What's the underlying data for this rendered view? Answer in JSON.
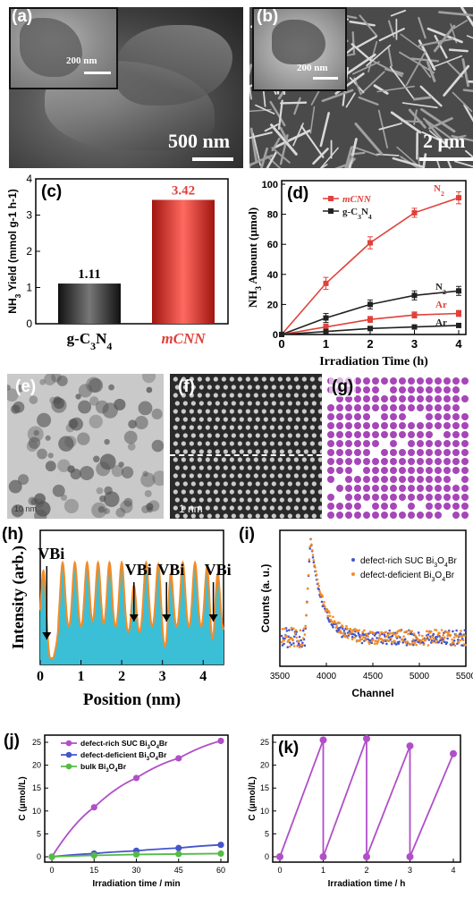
{
  "panels": {
    "a": {
      "label": "(a)",
      "scale_main": "500 nm",
      "scale_inset": "200 nm"
    },
    "b": {
      "label": "(b)",
      "scale_main": "2 μm",
      "scale_inset": "200 nm"
    },
    "c": {
      "label": "(c)"
    },
    "d": {
      "label": "(d)"
    },
    "e": {
      "label": "(e)",
      "scale": "10 nm"
    },
    "f": {
      "label": "(f)",
      "scale": "1 nm"
    },
    "g": {
      "label": "(g)"
    },
    "h": {
      "label": "(h)"
    },
    "i": {
      "label": "(i)"
    },
    "j": {
      "label": "(j)"
    },
    "k": {
      "label": "(k)"
    }
  },
  "colors": {
    "red": "#e0413a",
    "black": "#222222",
    "teal": "#3bbfd6",
    "orange": "#f28c28",
    "purple": "#b04fc8",
    "blue": "#4455cc",
    "green": "#55bb44",
    "atom": "#a646b8"
  },
  "chart_data": [
    {
      "id": "c",
      "type": "bar",
      "categories": [
        "g-C3N4",
        "mCNN"
      ],
      "values": [
        1.11,
        3.42
      ],
      "value_labels": [
        "1.11",
        "3.42"
      ],
      "ylabel": "NH3 Yield (mmol g-1 h-1)",
      "ylim": [
        0,
        4
      ],
      "yticks": [
        "0",
        "1",
        "2",
        "3",
        "4"
      ],
      "colors": [
        "#222222",
        "#e0413a"
      ]
    },
    {
      "id": "d",
      "type": "line",
      "xlabel": "Irradiation Time (h)",
      "ylabel": "NH3 Amount (μmol)",
      "xlim": [
        0,
        4
      ],
      "ylim": [
        0,
        100
      ],
      "xticks": [
        "0",
        "1",
        "2",
        "3",
        "4"
      ],
      "yticks": [
        "0",
        "20",
        "40",
        "60",
        "80",
        "100"
      ],
      "legend": [
        {
          "name": "mCNN",
          "color": "#e0413a"
        },
        {
          "name": "g-C3N4",
          "color": "#222222"
        }
      ],
      "series": [
        {
          "name": "mCNN N2",
          "color": "#e0413a",
          "x": [
            0,
            1,
            2,
            3,
            4
          ],
          "y": [
            0,
            34,
            61,
            81,
            91
          ],
          "err": [
            0,
            4,
            4,
            3,
            4
          ]
        },
        {
          "name": "g-C3N4 N2",
          "color": "#222222",
          "x": [
            0,
            1,
            2,
            3,
            4
          ],
          "y": [
            0,
            11,
            20,
            26,
            29
          ],
          "err": [
            0,
            3,
            3,
            3,
            3
          ]
        },
        {
          "name": "mCNN Ar",
          "color": "#e0413a",
          "x": [
            0,
            1,
            2,
            3,
            4
          ],
          "y": [
            0,
            5,
            10,
            13,
            14
          ],
          "err": [
            0,
            2,
            2,
            2,
            2
          ]
        },
        {
          "name": "g-C3N4 Ar",
          "color": "#222222",
          "x": [
            0,
            1,
            2,
            3,
            4
          ],
          "y": [
            0,
            2,
            4,
            5,
            6
          ],
          "err": [
            0,
            1,
            1,
            1,
            1
          ]
        }
      ],
      "annotations": [
        {
          "text": "N2",
          "color": "#e0413a"
        },
        {
          "text": "N2",
          "color": "#222222"
        },
        {
          "text": "Ar",
          "color": "#e0413a"
        },
        {
          "text": "Ar",
          "color": "#222222"
        }
      ]
    },
    {
      "id": "h",
      "type": "area",
      "xlabel": "Position (nm)",
      "ylabel": "Intensity (arb.)",
      "xlim": [
        0,
        4.5
      ],
      "xticks": [
        "0",
        "1",
        "2",
        "3",
        "4"
      ],
      "peaks_x": [
        0.08,
        0.55,
        0.85,
        1.15,
        1.42,
        1.7,
        2.0,
        2.3,
        2.6,
        2.9,
        3.2,
        3.5,
        3.8,
        4.1,
        4.35
      ],
      "vacancy_labels": [
        "VBi",
        "VBi",
        "VBi",
        "VBi"
      ],
      "vacancy_x": [
        0.27,
        2.3,
        3.1,
        4.25
      ]
    },
    {
      "id": "i",
      "type": "scatter",
      "xlabel": "Channel",
      "ylabel": "Counts (a. u.)",
      "xlim": [
        3500,
        5500
      ],
      "xticks": [
        "3500",
        "4000",
        "4500",
        "5000",
        "5500"
      ],
      "series": [
        {
          "name": "defect-rich SUC Bi3O4Br",
          "color": "#4455cc"
        },
        {
          "name": "defect-deficient Bi3O4Br",
          "color": "#f28c28"
        }
      ],
      "peak_channel": 3830
    },
    {
      "id": "j",
      "type": "line",
      "xlabel": "Irradiation time / min",
      "ylabel": "C (μmol/L)",
      "xlim": [
        0,
        60
      ],
      "ylim": [
        0,
        25
      ],
      "xticks": [
        "0",
        "15",
        "30",
        "45",
        "60"
      ],
      "yticks": [
        "0",
        "5",
        "10",
        "15",
        "20",
        "25"
      ],
      "x": [
        0,
        15,
        30,
        45,
        60
      ],
      "series": [
        {
          "name": "defect-rich SUC Bi3O4Br",
          "color": "#b04fc8",
          "y": [
            0,
            10.8,
            17.2,
            21.5,
            25.3
          ]
        },
        {
          "name": "defect-deficient Bi3O4Br",
          "color": "#4455cc",
          "y": [
            0,
            0.7,
            1.3,
            1.9,
            2.6
          ]
        },
        {
          "name": "bulk Bi3O4Br",
          "color": "#55bb44",
          "y": [
            0,
            0.3,
            0.5,
            0.6,
            0.7
          ]
        }
      ]
    },
    {
      "id": "k",
      "type": "line",
      "xlabel": "Irradiation time / h",
      "ylabel": "C (μmol/L)",
      "xlim": [
        0,
        4
      ],
      "ylim": [
        0,
        25
      ],
      "xticks": [
        "0",
        "1",
        "2",
        "3",
        "4"
      ],
      "yticks": [
        "0",
        "5",
        "10",
        "15",
        "20",
        "25"
      ],
      "x": [
        0,
        1,
        1,
        2,
        2,
        3,
        3,
        4
      ],
      "y": [
        0,
        25.5,
        0,
        25.8,
        0,
        24.2,
        0,
        22.5
      ],
      "color": "#b04fc8"
    }
  ]
}
